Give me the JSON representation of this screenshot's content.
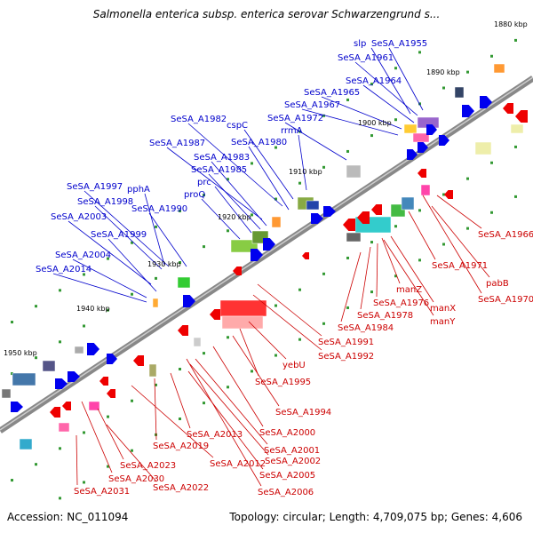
{
  "title": "Salmonella enterica subsp. enterica serovar Schwarzengrund s...",
  "footer": {
    "accession": "Accession: NC_011094",
    "summary": "Topology: circular; Length: 4,709,075 bp; Genes: 4,606"
  },
  "colors": {
    "forward_label": "#0000cc",
    "reverse_label": "#cc0000",
    "backbone": "#888888"
  },
  "kbp_ticks": [
    "1880 kbp",
    "1890 kbp",
    "1900 kbp",
    "1910 kbp",
    "1920 kbp",
    "1930 kbp",
    "1940 kbp",
    "1950 kbp"
  ],
  "forward_genes": [
    "slp",
    "SeSA_A1955",
    "SeSA_A1961",
    "SeSA_A1964",
    "SeSA_A1965",
    "SeSA_A1967",
    "SeSA_A1972",
    "rrmA",
    "SeSA_A1982",
    "cspC",
    "SeSA_A1980",
    "SeSA_A1987",
    "SeSA_A1983",
    "SeSA_A1985",
    "prc",
    "proQ",
    "SeSA_A1997",
    "pphA",
    "SeSA_A1998",
    "SeSA_A1990",
    "SeSA_A2003",
    "SeSA_A1999",
    "SeSA_A2004",
    "SeSA_A2014"
  ],
  "reverse_genes": [
    "SeSA_A1966",
    "pabB",
    "SeSA_A1971",
    "SeSA_A1970",
    "manZ",
    "SeSA_A1976",
    "manX",
    "SeSA_A1978",
    "manY",
    "SeSA_A1984",
    "SeSA_A1991",
    "SeSA_A1992",
    "yebU",
    "SeSA_A1995",
    "SeSA_A1994",
    "SeSA_A2013",
    "SeSA_A2000",
    "SeSA_A2019",
    "SeSA_A2001",
    "SeSA_A2002",
    "SeSA_A2012",
    "SeSA_A2023",
    "SeSA_A2005",
    "SeSA_A2030",
    "SeSA_A2022",
    "SeSA_A2006",
    "SeSA_A2031"
  ]
}
